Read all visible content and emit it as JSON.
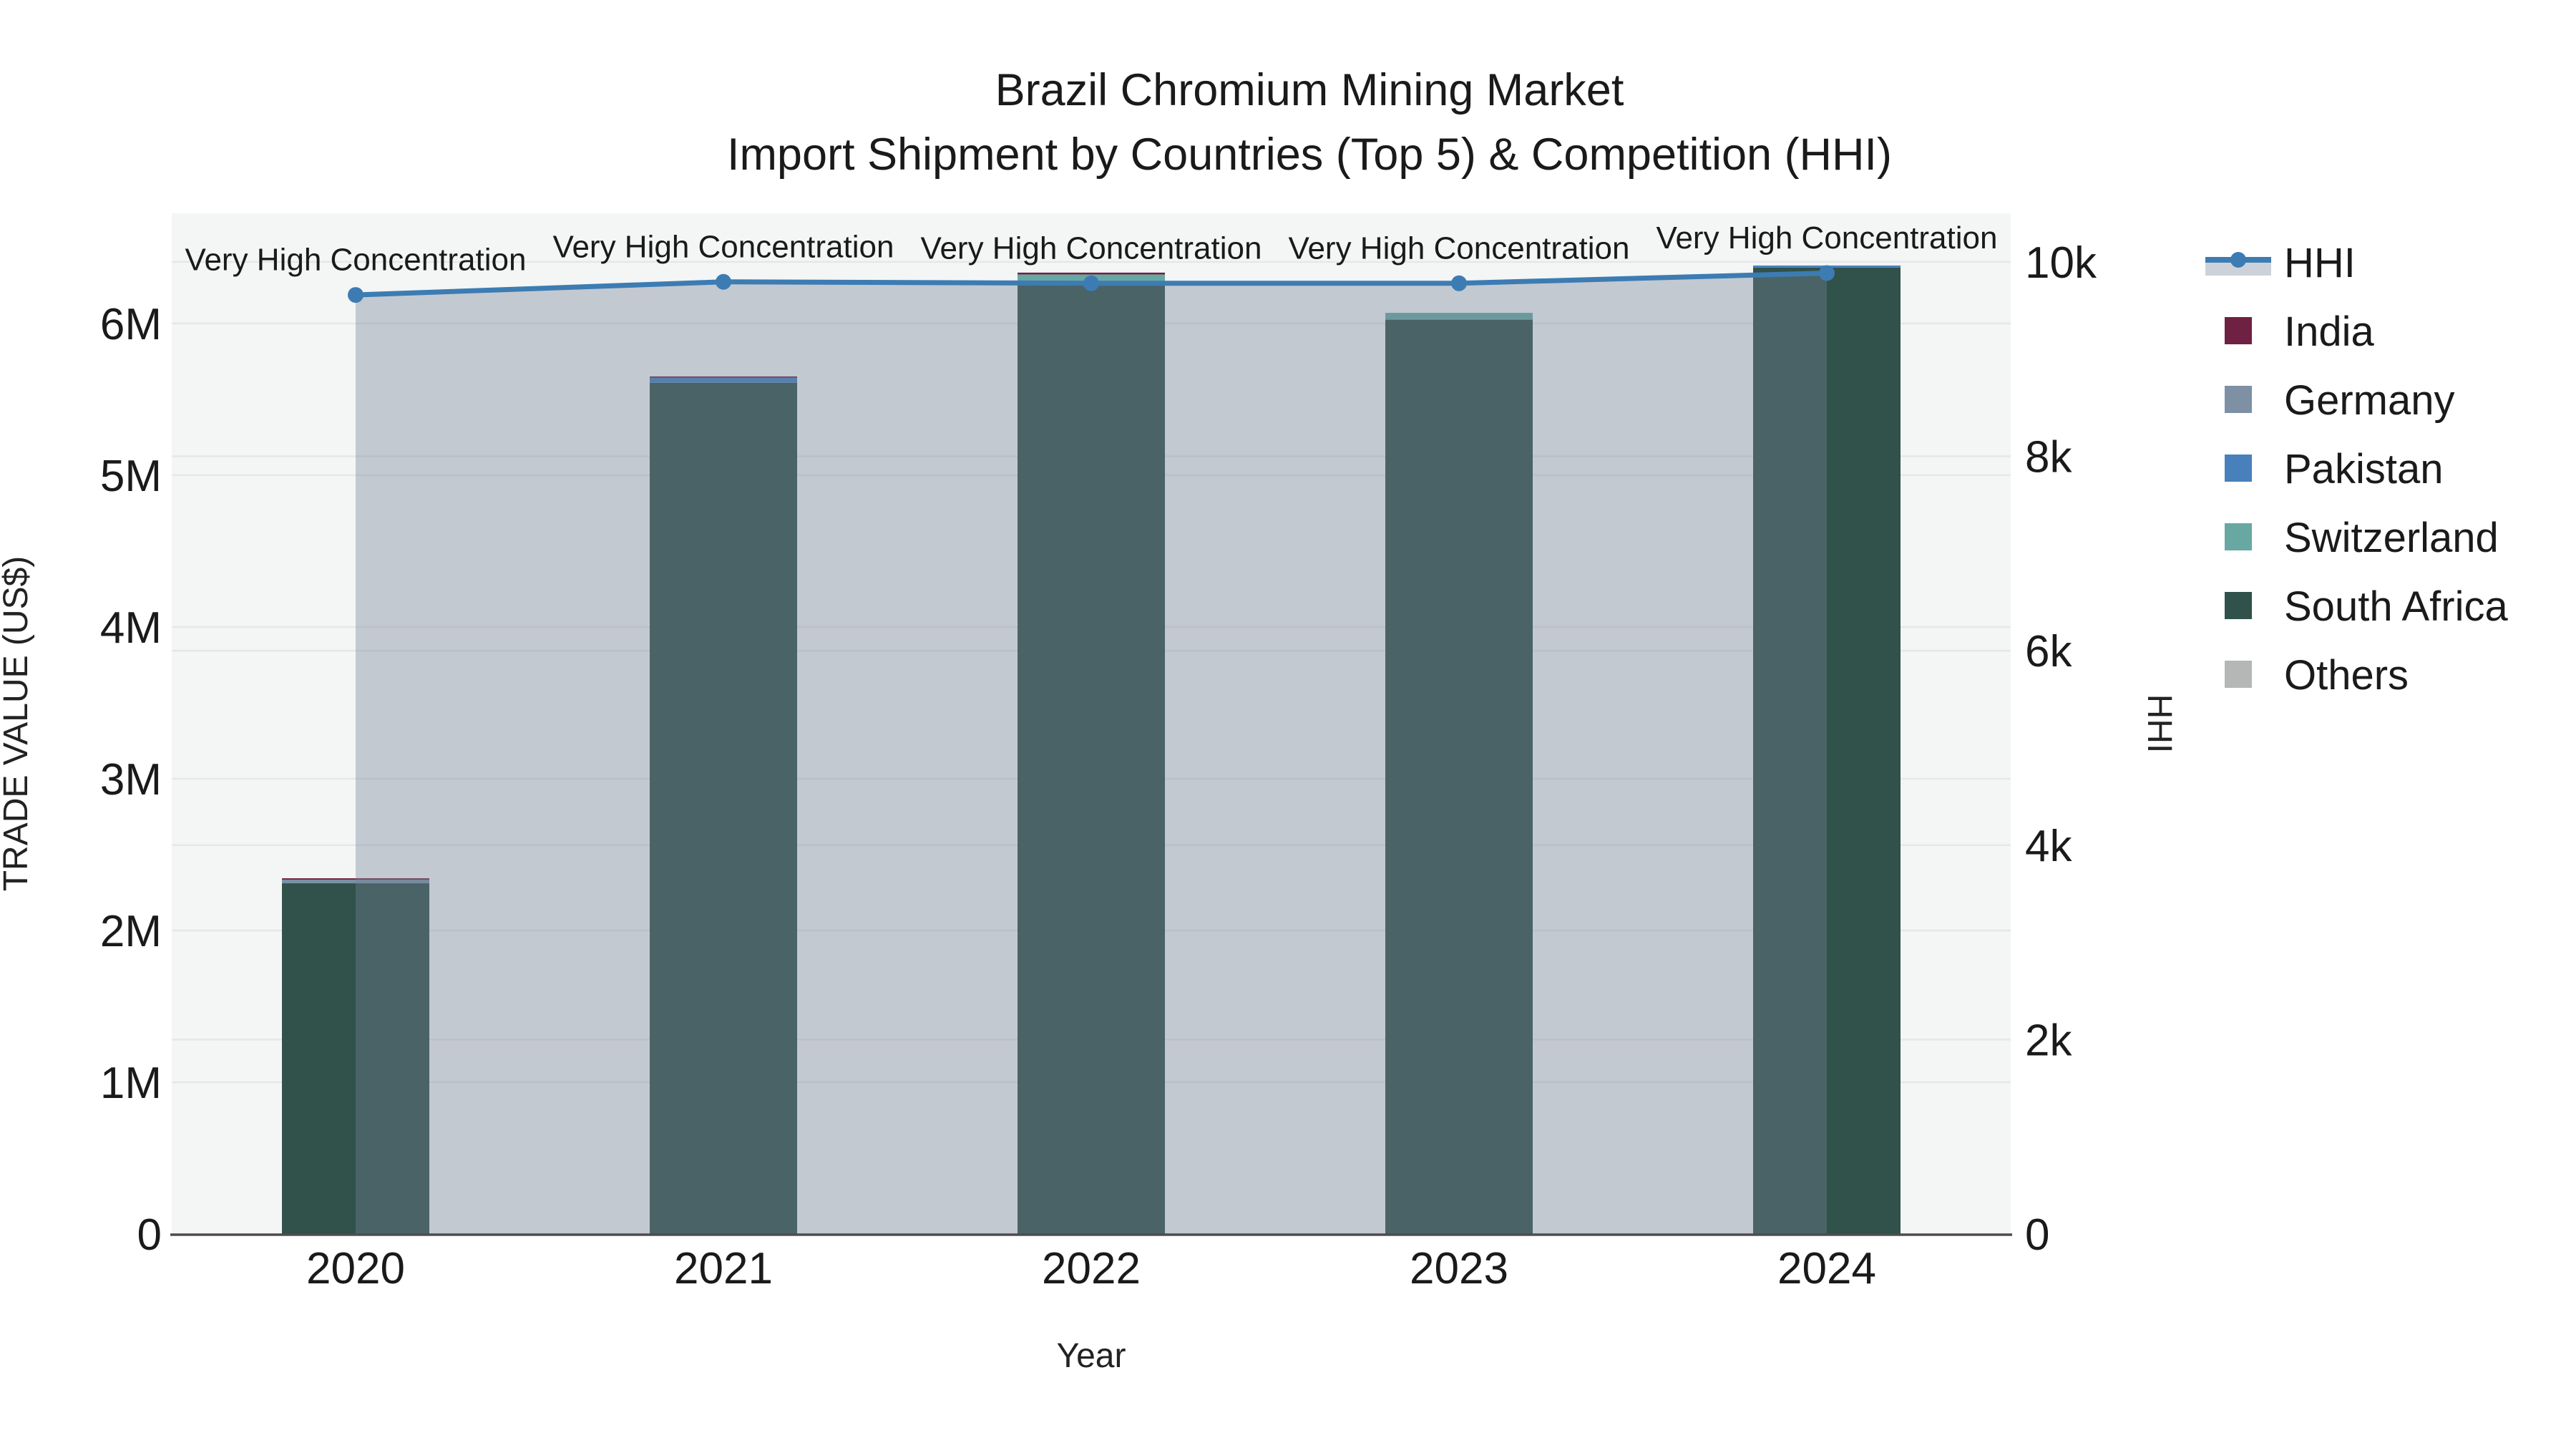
{
  "title": {
    "line1": "Brazil Chromium Mining Market",
    "line2": "Import Shipment by Countries (Top 5) & Competition (HHI)"
  },
  "chart_data": {
    "type": "combo-stacked-bar-line",
    "categories": [
      "2020",
      "2021",
      "2022",
      "2023",
      "2024"
    ],
    "xlabel": "Year",
    "ylabel_left": "TRADE VALUE (US$)",
    "ylabel_right": "HHI",
    "bar_series": [
      {
        "name": "India",
        "color": "#6e2142",
        "values": [
          9000,
          9000,
          12000,
          0,
          0
        ]
      },
      {
        "name": "Germany",
        "color": "#7d90a4",
        "values": [
          24000,
          0,
          0,
          0,
          0
        ]
      },
      {
        "name": "Pakistan",
        "color": "#4880bb",
        "values": [
          0,
          33000,
          0,
          0,
          14000
        ]
      },
      {
        "name": "Switzerland",
        "color": "#68a8a3",
        "values": [
          0,
          0,
          57000,
          45000,
          0
        ]
      },
      {
        "name": "South Africa",
        "color": "#31514b",
        "values": [
          2311000,
          5609000,
          6266000,
          6025000,
          6368000
        ]
      },
      {
        "name": "Others",
        "color": "#b4b7b6",
        "values": [
          0,
          0,
          0,
          0,
          0
        ]
      }
    ],
    "stack_order_bottom_up": [
      "Others",
      "South Africa",
      "Switzerland",
      "Pakistan",
      "Germany",
      "India"
    ],
    "line_series": {
      "name": "HHI",
      "color": "#3d7cb3",
      "area_fill": "rgba(115,128,150,0.38)",
      "values": [
        9660,
        9795,
        9780,
        9780,
        9885
      ]
    },
    "annotations": [
      {
        "text": "Very High Concentration",
        "category": "2020"
      },
      {
        "text": "Very High Concentration",
        "category": "2021"
      },
      {
        "text": "Very High Concentration",
        "category": "2022"
      },
      {
        "text": "Very High Concentration",
        "category": "2023"
      },
      {
        "text": "Very High Concentration",
        "category": "2024"
      }
    ],
    "yaxis_left": {
      "ticks": [
        {
          "label": "0",
          "value": 0
        },
        {
          "label": "1M",
          "value": 1000000
        },
        {
          "label": "2M",
          "value": 2000000
        },
        {
          "label": "3M",
          "value": 3000000
        },
        {
          "label": "4M",
          "value": 4000000
        },
        {
          "label": "5M",
          "value": 5000000
        },
        {
          "label": "6M",
          "value": 6000000
        }
      ],
      "max": 6726000
    },
    "yaxis_right": {
      "ticks": [
        {
          "label": "0",
          "value": 0
        },
        {
          "label": "2k",
          "value": 2000
        },
        {
          "label": "4k",
          "value": 4000
        },
        {
          "label": "6k",
          "value": 6000
        },
        {
          "label": "8k",
          "value": 8000
        },
        {
          "label": "10k",
          "value": 10000
        }
      ],
      "max": 10500
    },
    "grid": true,
    "legend_position": "right",
    "colors": {
      "plot_background": "#f4f5f5",
      "gridline": "#e6e7e9",
      "axis_line": "#4d4d4d",
      "annotation_text": "#222222"
    }
  }
}
